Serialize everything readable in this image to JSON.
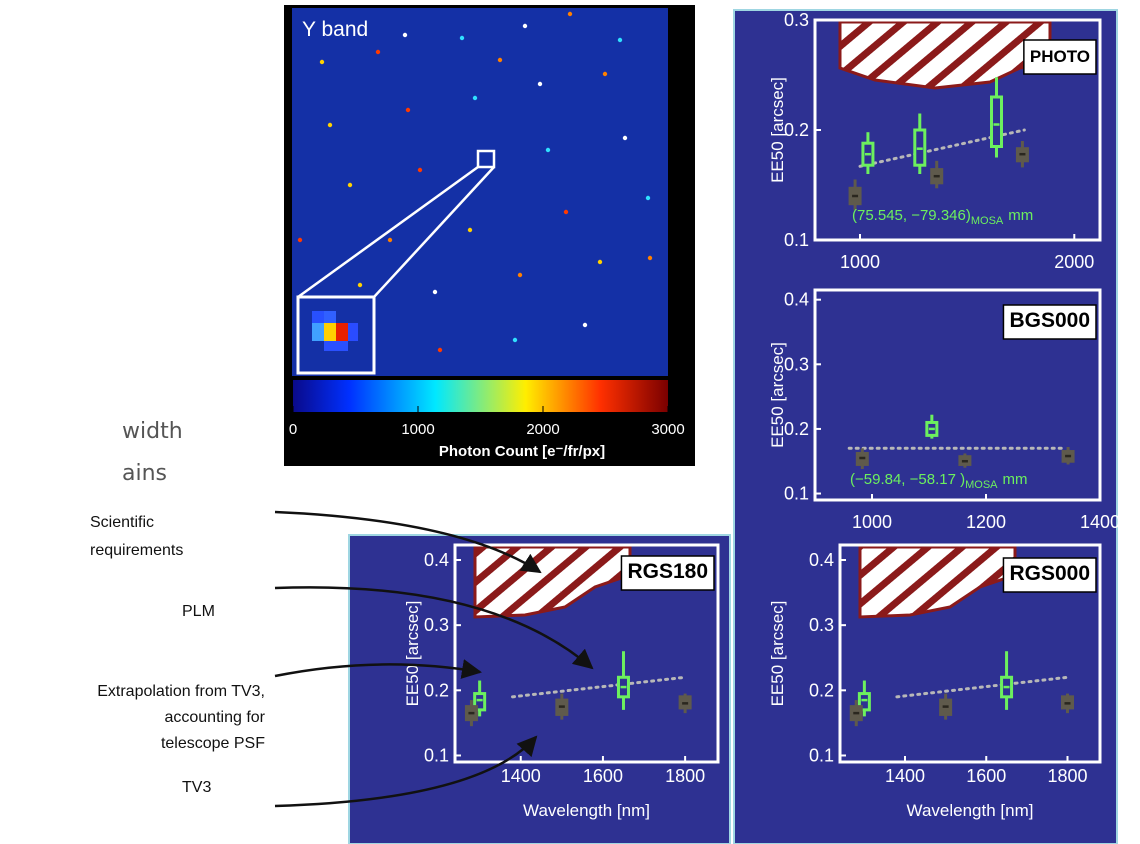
{
  "slide_text": [
    "width",
    "ains"
  ],
  "image": {
    "band": "Y band",
    "colorbar": {
      "lim": [
        0,
        3000
      ],
      "ticks": [
        0,
        1000,
        2000,
        3000
      ],
      "label": "Photon Count [e⁻/fr/px]"
    }
  },
  "annotations": {
    "requirements": [
      "Scientific",
      "requirements"
    ],
    "plm": "PLM",
    "extrapolation": [
      "Extrapolation from TV3,",
      "accounting for",
      "telescope PSF"
    ],
    "tv3": "TV3"
  },
  "chart_data": [
    {
      "type": "box",
      "label": "PHOTO",
      "ylabel": "EE50 [arcsec]",
      "xlim": [
        790,
        2120
      ],
      "xticks": [
        1000,
        2000
      ],
      "ylim": [
        0.1,
        0.3
      ],
      "yticks": [
        0.1,
        0.2,
        0.3
      ],
      "series": [
        {
          "color": "#6cf05e",
          "filled": false,
          "x": [
            1037,
            1279,
            1637
          ],
          "whislo": [
            0.16,
            0.16,
            0.175
          ],
          "q1": [
            0.168,
            0.168,
            0.185
          ],
          "med": [
            0.178,
            0.183,
            0.205
          ],
          "q3": [
            0.188,
            0.2,
            0.23
          ],
          "whishi": [
            0.198,
            0.215,
            0.248
          ]
        },
        {
          "color": "#5f5a4c",
          "filled": true,
          "x": [
            977,
            1358,
            1758
          ],
          "whislo": [
            0.127,
            0.147,
            0.166
          ],
          "q1": [
            0.133,
            0.152,
            0.172
          ],
          "med": [
            0.14,
            0.158,
            0.178
          ],
          "q3": [
            0.147,
            0.164,
            0.183
          ],
          "whishi": [
            0.155,
            0.172,
            0.19
          ]
        }
      ],
      "trend": {
        "x": [
          1000,
          1767
        ],
        "y": [
          0.167,
          0.2
        ]
      },
      "note": {
        "text": "(75.545, −79.346)",
        "sub": "MOSA",
        "unit": "mm"
      }
    },
    {
      "type": "box",
      "label": "BGS000",
      "ylabel": "EE50 [arcsec]",
      "xlim": [
        900,
        1400
      ],
      "xticks": [
        1000,
        1200,
        1400
      ],
      "ylim": [
        0.09,
        0.415
      ],
      "yticks": [
        0.1,
        0.2,
        0.3,
        0.4
      ],
      "series": [
        {
          "color": "#6cf05e",
          "filled": false,
          "x": [
            1105
          ],
          "whislo": [
            0.185
          ],
          "q1": [
            0.19
          ],
          "med": [
            0.2
          ],
          "q3": [
            0.21
          ],
          "whishi": [
            0.222
          ]
        },
        {
          "color": "#5f5a4c",
          "filled": true,
          "x": [
            983,
            1163,
            1344
          ],
          "whislo": [
            0.138,
            0.14,
            0.145
          ],
          "q1": [
            0.145,
            0.145,
            0.15
          ],
          "med": [
            0.155,
            0.15,
            0.158
          ],
          "q3": [
            0.162,
            0.157,
            0.165
          ],
          "whishi": [
            0.17,
            0.162,
            0.172
          ]
        }
      ],
      "trend": {
        "x": [
          960,
          1340
        ],
        "y": [
          0.17,
          0.17
        ]
      },
      "note": {
        "text": "(−59.84, −58.17 )",
        "sub": "MOSA",
        "unit": "mm"
      }
    },
    {
      "type": "box",
      "label": "RGS180",
      "ylabel": "EE50 [arcsec]",
      "xlabel": "Wavelength [nm]",
      "xlim": [
        1240,
        1880
      ],
      "xticks": [
        1400,
        1600,
        1800
      ],
      "ylim": [
        0.09,
        0.423
      ],
      "yticks": [
        0.1,
        0.2,
        0.3,
        0.4
      ],
      "series": [
        {
          "color": "#6cf05e",
          "filled": false,
          "x": [
            1300,
            1650
          ],
          "whislo": [
            0.16,
            0.17
          ],
          "q1": [
            0.17,
            0.19
          ],
          "med": [
            0.185,
            0.205
          ],
          "q3": [
            0.195,
            0.22
          ],
          "whishi": [
            0.215,
            0.26
          ]
        },
        {
          "color": "#5f5a4c",
          "filled": true,
          "x": [
            1280,
            1500,
            1800
          ],
          "whislo": [
            0.145,
            0.155,
            0.165
          ],
          "q1": [
            0.155,
            0.163,
            0.173
          ],
          "med": [
            0.165,
            0.175,
            0.18
          ],
          "q3": [
            0.175,
            0.185,
            0.19
          ],
          "whishi": [
            0.185,
            0.195,
            0.195
          ]
        }
      ],
      "trend": {
        "x": [
          1380,
          1800
        ],
        "y": [
          0.19,
          0.22
        ]
      }
    },
    {
      "type": "box",
      "label": "RGS000",
      "ylabel": "EE50 [arcsec]",
      "xlabel": "Wavelength [nm]",
      "xlim": [
        1240,
        1880
      ],
      "xticks": [
        1400,
        1600,
        1800
      ],
      "ylim": [
        0.09,
        0.423
      ],
      "yticks": [
        0.1,
        0.2,
        0.3,
        0.4
      ],
      "series": [
        {
          "color": "#6cf05e",
          "filled": false,
          "x": [
            1300,
            1650
          ],
          "whislo": [
            0.16,
            0.17
          ],
          "q1": [
            0.17,
            0.19
          ],
          "med": [
            0.185,
            0.205
          ],
          "q3": [
            0.195,
            0.22
          ],
          "whishi": [
            0.215,
            0.26
          ]
        },
        {
          "color": "#5f5a4c",
          "filled": true,
          "x": [
            1280,
            1500,
            1800
          ],
          "whislo": [
            0.145,
            0.155,
            0.165
          ],
          "q1": [
            0.155,
            0.163,
            0.173
          ],
          "med": [
            0.165,
            0.175,
            0.18
          ],
          "q3": [
            0.175,
            0.185,
            0.19
          ],
          "whishi": [
            0.185,
            0.195,
            0.195
          ]
        }
      ],
      "trend": {
        "x": [
          1380,
          1800
        ],
        "y": [
          0.19,
          0.22
        ]
      }
    }
  ]
}
